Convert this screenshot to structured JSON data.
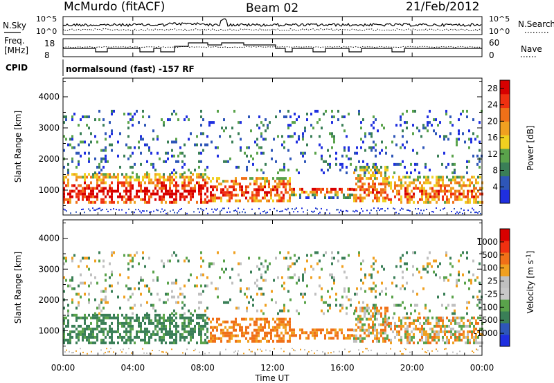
{
  "header": {
    "station": "McMurdo (fitACF)",
    "beam": "Beam 02",
    "date": "21/Feb/2012"
  },
  "top_panels": {
    "nsky_label": "N.Sky",
    "nsearch_label": "N.Search",
    "freq_label_1": "Freq.",
    "freq_label_2": "[MHz]",
    "nave_label": "Nave",
    "cpid_label": "CPID",
    "cpid_text": "normalsound (fast) -157 RF",
    "noise_left_ticks": [
      "10^5",
      "10^0"
    ],
    "noise_right_ticks": [
      "10^5",
      "10^0"
    ],
    "freq_left_ticks": [
      "18",
      "8"
    ],
    "nave_right_ticks": [
      "60",
      "0"
    ]
  },
  "colors": {
    "power": [
      "#1f2fe0",
      "#2e56b8",
      "#3a7f57",
      "#5aa34b",
      "#f0d020",
      "#f0a020",
      "#f07018",
      "#f03010",
      "#d80000"
    ],
    "velocity": [
      "#d80000",
      "#f03010",
      "#f07018",
      "#f0a020",
      "#c0c0c0",
      "#c8c8c8",
      "#5aa34b",
      "#3a7f57",
      "#2e56b8",
      "#1f2fe0"
    ]
  },
  "chart_data": [
    {
      "type": "heatmap",
      "title": "Power",
      "xlabel": "",
      "ylabel": "Slant Range [km]",
      "x_range": [
        "00:00",
        "24:00"
      ],
      "y_range": [
        200,
        4600
      ],
      "y_ticks": [
        "1000",
        "2000",
        "3000",
        "4000"
      ],
      "colorbar_label": "Power [dB]",
      "colorbar_ticks": [
        "4",
        "8",
        "12",
        "16",
        "20",
        "24",
        "28"
      ],
      "colorbar_range": [
        0,
        30
      ]
    },
    {
      "type": "heatmap",
      "title": "Velocity",
      "xlabel": "Time UT",
      "ylabel": "Slant Range [km]",
      "x_range": [
        "00:00",
        "24:00"
      ],
      "x_ticks": [
        "00:00",
        "04:00",
        "08:00",
        "12:00",
        "16:00",
        "20:00",
        "00:00"
      ],
      "y_range": [
        200,
        4600
      ],
      "y_ticks": [
        "1000",
        "2000",
        "3000",
        "4000"
      ],
      "colorbar_label": "Velocity [m s",
      "colorbar_label_sup": "-1",
      "colorbar_label_end": "]",
      "colorbar_ticks": [
        "1000",
        "500",
        "100",
        "25",
        "-25",
        "-100",
        "-500",
        "-1000"
      ]
    }
  ]
}
